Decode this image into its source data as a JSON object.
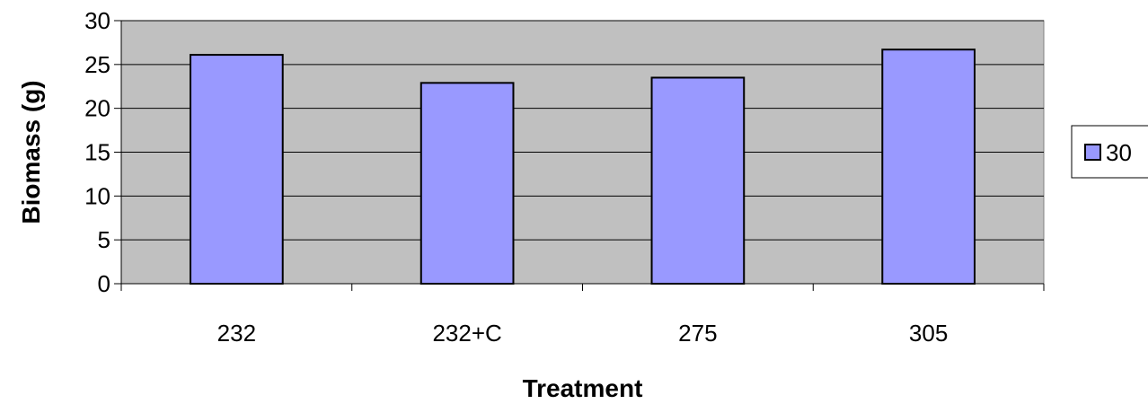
{
  "chart_data": {
    "type": "bar",
    "categories": [
      "232",
      "232+C",
      "275",
      "305"
    ],
    "series": [
      {
        "name": "30",
        "values": [
          26.1,
          22.9,
          23.5,
          26.7
        ]
      }
    ],
    "xlabel": "Treatment",
    "ylabel": "Biomass (g)",
    "ylim": [
      0,
      30
    ],
    "yticks": [
      "0",
      "5",
      "10",
      "15",
      "20",
      "25",
      "30"
    ],
    "grid": true,
    "legend_position": "right",
    "colors": {
      "plot_background": "#c0c0c0",
      "bar_fill": "#9999ff",
      "bar_stroke": "#000000",
      "gridline": "#000000"
    }
  }
}
